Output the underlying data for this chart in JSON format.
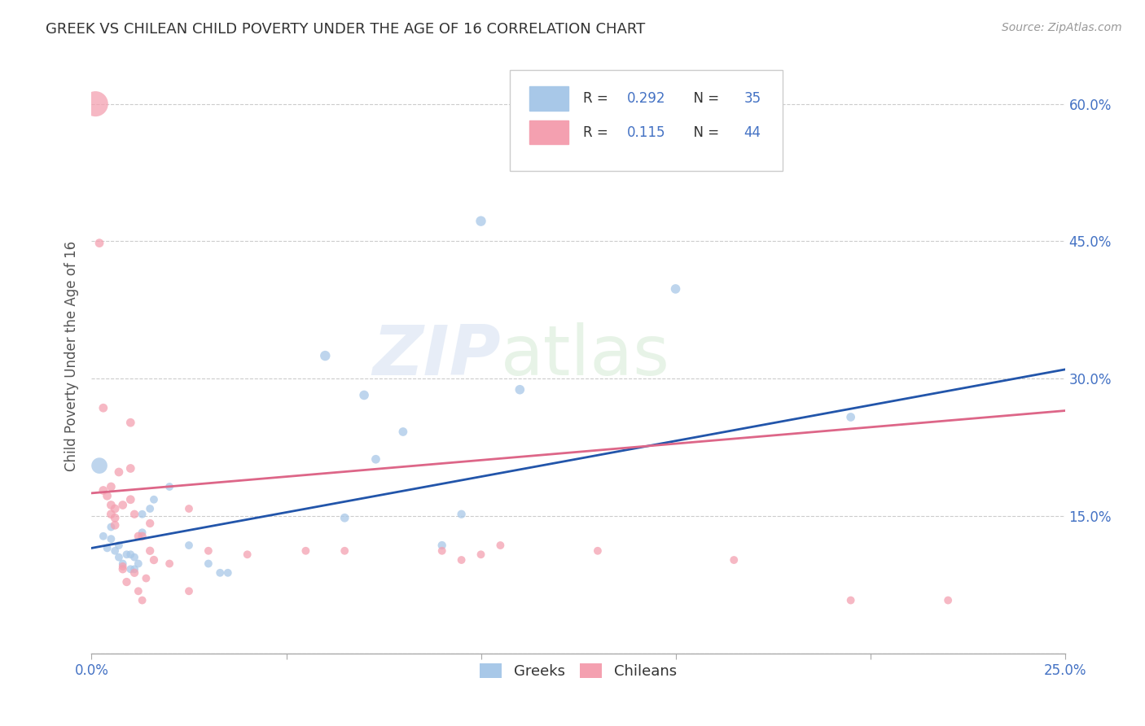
{
  "title": "GREEK VS CHILEAN CHILD POVERTY UNDER THE AGE OF 16 CORRELATION CHART",
  "source": "Source: ZipAtlas.com",
  "ylabel": "Child Poverty Under the Age of 16",
  "xlabel": "",
  "xlim": [
    0.0,
    0.25
  ],
  "ylim": [
    0.0,
    0.65
  ],
  "xtick_positions": [
    0.0,
    0.05,
    0.1,
    0.15,
    0.2,
    0.25
  ],
  "xtick_labels": [
    "0.0%",
    "",
    "",
    "",
    "",
    "25.0%"
  ],
  "yticks_right": [
    0.0,
    0.15,
    0.3,
    0.45,
    0.6
  ],
  "ytick_labels_right": [
    "",
    "15.0%",
    "30.0%",
    "45.0%",
    "60.0%"
  ],
  "greek_color": "#a8c8e8",
  "chilean_color": "#f4a0b0",
  "greek_line_color": "#2255aa",
  "chilean_line_color": "#dd6688",
  "R_greek": 0.292,
  "N_greek": 35,
  "R_chilean": 0.115,
  "N_chilean": 44,
  "watermark_zip": "ZIP",
  "watermark_atlas": "atlas",
  "background_color": "#ffffff",
  "grid_color": "#cccccc",
  "title_color": "#333333",
  "axis_label_color": "#555555",
  "tick_label_color": "#4472c4",
  "legend_R_color": "#4472c4",
  "greek_line_y0": 0.115,
  "greek_line_y1": 0.31,
  "chilean_line_y0": 0.175,
  "chilean_line_y1": 0.265,
  "greeks_data": [
    [
      0.002,
      0.205
    ],
    [
      0.003,
      0.128
    ],
    [
      0.004,
      0.115
    ],
    [
      0.005,
      0.125
    ],
    [
      0.005,
      0.138
    ],
    [
      0.006,
      0.112
    ],
    [
      0.007,
      0.118
    ],
    [
      0.007,
      0.105
    ],
    [
      0.008,
      0.098
    ],
    [
      0.009,
      0.108
    ],
    [
      0.01,
      0.092
    ],
    [
      0.01,
      0.108
    ],
    [
      0.011,
      0.105
    ],
    [
      0.011,
      0.092
    ],
    [
      0.012,
      0.098
    ],
    [
      0.013,
      0.152
    ],
    [
      0.013,
      0.132
    ],
    [
      0.015,
      0.158
    ],
    [
      0.016,
      0.168
    ],
    [
      0.02,
      0.182
    ],
    [
      0.025,
      0.118
    ],
    [
      0.03,
      0.098
    ],
    [
      0.033,
      0.088
    ],
    [
      0.035,
      0.088
    ],
    [
      0.06,
      0.325
    ],
    [
      0.065,
      0.148
    ],
    [
      0.07,
      0.282
    ],
    [
      0.073,
      0.212
    ],
    [
      0.08,
      0.242
    ],
    [
      0.09,
      0.118
    ],
    [
      0.095,
      0.152
    ],
    [
      0.1,
      0.472
    ],
    [
      0.11,
      0.288
    ],
    [
      0.15,
      0.398
    ],
    [
      0.195,
      0.258
    ]
  ],
  "chileans_data": [
    [
      0.001,
      0.6
    ],
    [
      0.003,
      0.178
    ],
    [
      0.003,
      0.268
    ],
    [
      0.004,
      0.172
    ],
    [
      0.005,
      0.162
    ],
    [
      0.005,
      0.152
    ],
    [
      0.005,
      0.182
    ],
    [
      0.006,
      0.158
    ],
    [
      0.006,
      0.148
    ],
    [
      0.006,
      0.14
    ],
    [
      0.007,
      0.198
    ],
    [
      0.008,
      0.162
    ],
    [
      0.008,
      0.092
    ],
    [
      0.009,
      0.078
    ],
    [
      0.01,
      0.168
    ],
    [
      0.01,
      0.202
    ],
    [
      0.01,
      0.252
    ],
    [
      0.011,
      0.152
    ],
    [
      0.011,
      0.088
    ],
    [
      0.012,
      0.128
    ],
    [
      0.012,
      0.068
    ],
    [
      0.013,
      0.128
    ],
    [
      0.013,
      0.058
    ],
    [
      0.014,
      0.082
    ],
    [
      0.015,
      0.142
    ],
    [
      0.015,
      0.112
    ],
    [
      0.016,
      0.102
    ],
    [
      0.02,
      0.098
    ],
    [
      0.025,
      0.158
    ],
    [
      0.025,
      0.068
    ],
    [
      0.03,
      0.112
    ],
    [
      0.04,
      0.108
    ],
    [
      0.055,
      0.112
    ],
    [
      0.065,
      0.112
    ],
    [
      0.09,
      0.112
    ],
    [
      0.095,
      0.102
    ],
    [
      0.1,
      0.108
    ],
    [
      0.105,
      0.118
    ],
    [
      0.13,
      0.112
    ],
    [
      0.165,
      0.102
    ],
    [
      0.195,
      0.058
    ],
    [
      0.22,
      0.058
    ],
    [
      0.002,
      0.448
    ],
    [
      0.008,
      0.095
    ]
  ],
  "greek_sizes": [
    200,
    50,
    50,
    50,
    50,
    50,
    50,
    50,
    50,
    50,
    50,
    50,
    50,
    50,
    50,
    50,
    50,
    50,
    50,
    50,
    50,
    50,
    50,
    50,
    80,
    60,
    70,
    60,
    60,
    55,
    55,
    80,
    70,
    70,
    60
  ],
  "chilean_sizes": [
    500,
    60,
    60,
    60,
    60,
    60,
    60,
    60,
    60,
    60,
    60,
    60,
    55,
    55,
    60,
    60,
    60,
    55,
    55,
    55,
    50,
    55,
    50,
    50,
    55,
    55,
    55,
    50,
    50,
    50,
    50,
    50,
    50,
    50,
    50,
    50,
    50,
    50,
    50,
    50,
    50,
    50,
    60,
    50
  ]
}
